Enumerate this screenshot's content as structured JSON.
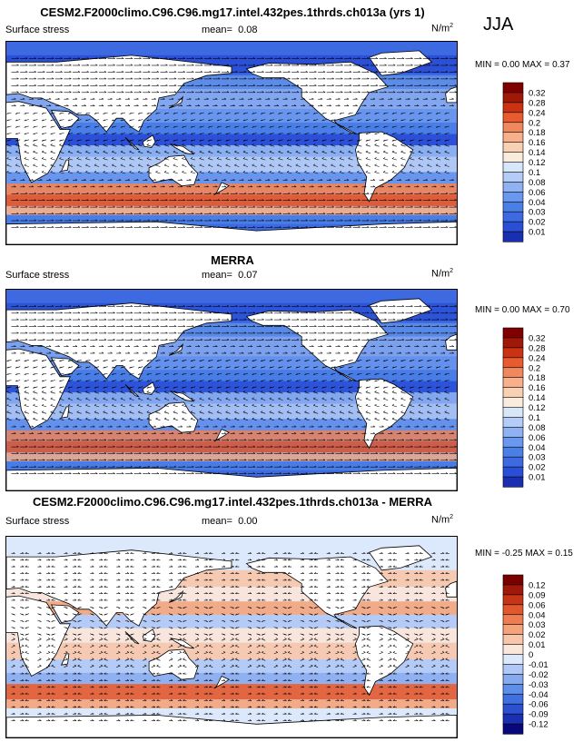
{
  "season": "JJA",
  "panels": [
    {
      "title": "CESM2.F2000climo.C96.C96.mg17.intel.432pes.1thrds.ch013a (yrs 1)",
      "left_label": "Surface stress",
      "mean_label": "mean=",
      "mean_value": "0.08",
      "units": "N/m",
      "units_sup": "2",
      "min_label": "MIN =",
      "min_value": "0.00",
      "max_label": "MAX =",
      "max_value": "0.37",
      "palette": "sequential",
      "colorbar_labels": [
        "0.32",
        "0.28",
        "0.24",
        "0.2",
        "0.18",
        "0.16",
        "0.14",
        "0.12",
        "0.1",
        "0.08",
        "0.06",
        "0.04",
        "0.03",
        "0.02",
        "0.01"
      ]
    },
    {
      "title": "MERRA",
      "left_label": "Surface stress",
      "mean_label": "mean=",
      "mean_value": "0.07",
      "units": "N/m",
      "units_sup": "2",
      "min_label": "MIN =",
      "min_value": "0.00",
      "max_label": "MAX =",
      "max_value": "0.70",
      "palette": "sequential",
      "colorbar_labels": [
        "0.32",
        "0.28",
        "0.24",
        "0.2",
        "0.18",
        "0.16",
        "0.14",
        "0.12",
        "0.1",
        "0.08",
        "0.06",
        "0.04",
        "0.03",
        "0.02",
        "0.01"
      ]
    },
    {
      "title": "CESM2.F2000climo.C96.C96.mg17.intel.432pes.1thrds.ch013a - MERRA",
      "left_label": "Surface stress",
      "mean_label": "mean=",
      "mean_value": "0.00",
      "units": "N/m",
      "units_sup": "2",
      "min_label": "MIN =",
      "min_value": "-0.25",
      "max_label": "MAX =",
      "max_value": "0.15",
      "palette": "diverging",
      "colorbar_labels": [
        "0.12",
        "0.09",
        "0.06",
        "0.04",
        "0.03",
        "0.02",
        "0.01",
        "0",
        "-0.01",
        "-0.02",
        "-0.03",
        "-0.04",
        "-0.06",
        "-0.09",
        "-0.12"
      ]
    }
  ],
  "chart_data": [
    {
      "type": "heatmap",
      "title": "CESM2.F2000climo.C96.C96.mg17.intel.432pes.1thrds.ch013a (yrs 1)",
      "field": "Surface stress",
      "units": "N/m2",
      "mean": 0.08,
      "min": 0.0,
      "max": 0.37,
      "colorbar_levels": [
        0.01,
        0.02,
        0.03,
        0.04,
        0.06,
        0.08,
        0.1,
        0.12,
        0.14,
        0.16,
        0.18,
        0.2,
        0.24,
        0.28,
        0.32
      ],
      "colors": [
        "#1a2eb0",
        "#2a4fd6",
        "#3d6ae0",
        "#4a7fe6",
        "#6a98ee",
        "#8eb2f2",
        "#b4ccf6",
        "#d8e6fa",
        "#faecdd",
        "#f9d0b2",
        "#f6b08c",
        "#f0885e",
        "#e65c30",
        "#cc3212",
        "#a01808",
        "#800000"
      ]
    },
    {
      "type": "heatmap",
      "title": "MERRA",
      "field": "Surface stress",
      "units": "N/m2",
      "mean": 0.07,
      "min": 0.0,
      "max": 0.7,
      "colorbar_levels": [
        0.01,
        0.02,
        0.03,
        0.04,
        0.06,
        0.08,
        0.1,
        0.12,
        0.14,
        0.16,
        0.18,
        0.2,
        0.24,
        0.28,
        0.32
      ],
      "colors": [
        "#1a2eb0",
        "#2a4fd6",
        "#3d6ae0",
        "#4a7fe6",
        "#6a98ee",
        "#8eb2f2",
        "#b4ccf6",
        "#d8e6fa",
        "#faecdd",
        "#f9d0b2",
        "#f6b08c",
        "#f0885e",
        "#e65c30",
        "#cc3212",
        "#a01808",
        "#800000"
      ]
    },
    {
      "type": "heatmap",
      "title": "CESM2.F2000climo.C96.C96.mg17.intel.432pes.1thrds.ch013a - MERRA",
      "field": "Surface stress",
      "units": "N/m2",
      "mean": 0.0,
      "min": -0.25,
      "max": 0.15,
      "colorbar_levels": [
        -0.12,
        -0.09,
        -0.06,
        -0.04,
        -0.03,
        -0.02,
        -0.01,
        0,
        0.01,
        0.02,
        0.03,
        0.04,
        0.06,
        0.09,
        0.12
      ],
      "colors": [
        "#08087a",
        "#1a30b0",
        "#2d50d0",
        "#4070e0",
        "#5e8ee8",
        "#86aaf0",
        "#b0c8f6",
        "#dce8fb",
        "#fbe6da",
        "#f8c6aa",
        "#f4a47c",
        "#ee7e52",
        "#e2582e",
        "#c83416",
        "#a0180a",
        "#7a0000"
      ]
    }
  ]
}
